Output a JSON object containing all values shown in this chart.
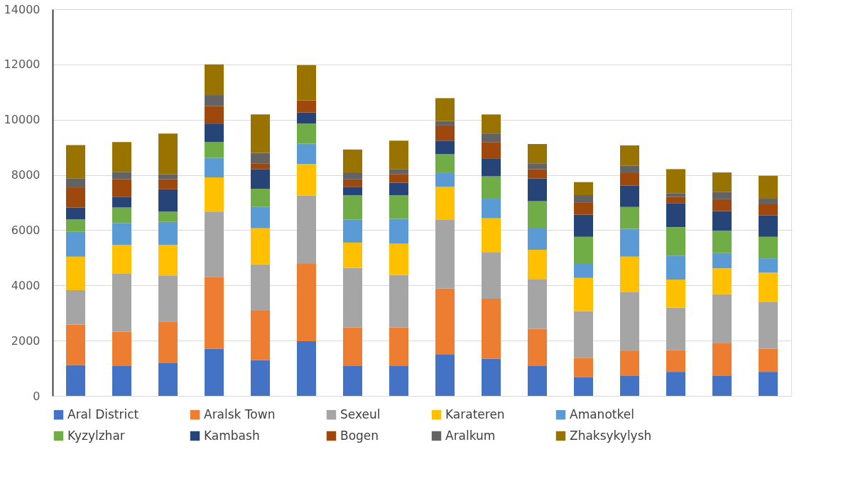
{
  "chart_data": {
    "type": "bar",
    "stacked": true,
    "categories": [
      null,
      null,
      null,
      null,
      null,
      null,
      null,
      null,
      null,
      null,
      null,
      null,
      null,
      null,
      null,
      null
    ],
    "series": [
      {
        "name": "Aral District",
        "color": "#4472c4",
        "values": [
          1120,
          1080,
          1180,
          1700,
          1290,
          1980,
          1080,
          1080,
          1510,
          1340,
          1080,
          670,
          720,
          870,
          720,
          870
        ]
      },
      {
        "name": "Aralsk Town",
        "color": "#ed7d31",
        "values": [
          1460,
          1240,
          1510,
          2610,
          1790,
          2800,
          1390,
          1390,
          2380,
          2180,
          1350,
          710,
          920,
          790,
          1200,
          830
        ]
      },
      {
        "name": "Sexeul",
        "color": "#a5a5a5",
        "values": [
          1250,
          2100,
          1670,
          2360,
          1680,
          2470,
          2160,
          1910,
          2480,
          1690,
          1800,
          1690,
          2110,
          1540,
          1760,
          1690
        ]
      },
      {
        "name": "Karateren",
        "color": "#ffc000",
        "values": [
          1210,
          1050,
          1110,
          1240,
          1310,
          1150,
          920,
          1130,
          1200,
          1220,
          1060,
          1200,
          1290,
          1010,
          940,
          1070
        ]
      },
      {
        "name": "Amanotkel",
        "color": "#5b9bd5",
        "values": [
          900,
          790,
          830,
          710,
          770,
          730,
          830,
          900,
          520,
          710,
          800,
          510,
          1010,
          870,
          550,
          520
        ]
      },
      {
        "name": "Kyzylzhar",
        "color": "#70ad47",
        "values": [
          450,
          560,
          370,
          570,
          660,
          730,
          890,
          860,
          660,
          810,
          960,
          980,
          790,
          1030,
          810,
          780
        ]
      },
      {
        "name": "Kambash",
        "color": "#264478",
        "values": [
          430,
          390,
          810,
          670,
          710,
          400,
          300,
          450,
          490,
          650,
          820,
          800,
          770,
          870,
          710,
          780
        ]
      },
      {
        "name": "Bogen",
        "color": "#9e480e",
        "values": [
          730,
          640,
          370,
          630,
          210,
          430,
          270,
          300,
          550,
          590,
          340,
          450,
          480,
          220,
          430,
          420
        ]
      },
      {
        "name": "Aralkum",
        "color": "#636363",
        "values": [
          320,
          260,
          170,
          400,
          370,
          null,
          250,
          190,
          160,
          310,
          210,
          260,
          250,
          140,
          270,
          180
        ]
      },
      {
        "name": "Zhaksykylysh",
        "color": "#997300",
        "values": [
          1210,
          1080,
          1480,
          1110,
          1400,
          1290,
          830,
          1030,
          830,
          690,
          700,
          470,
          730,
          870,
          700,
          830
        ]
      }
    ],
    "ylim": [
      0,
      14000
    ],
    "yticks": [
      0,
      2000,
      4000,
      6000,
      8000,
      10000,
      12000,
      14000
    ],
    "grid": "y",
    "legend": "bottom",
    "tick_labels": "y"
  }
}
